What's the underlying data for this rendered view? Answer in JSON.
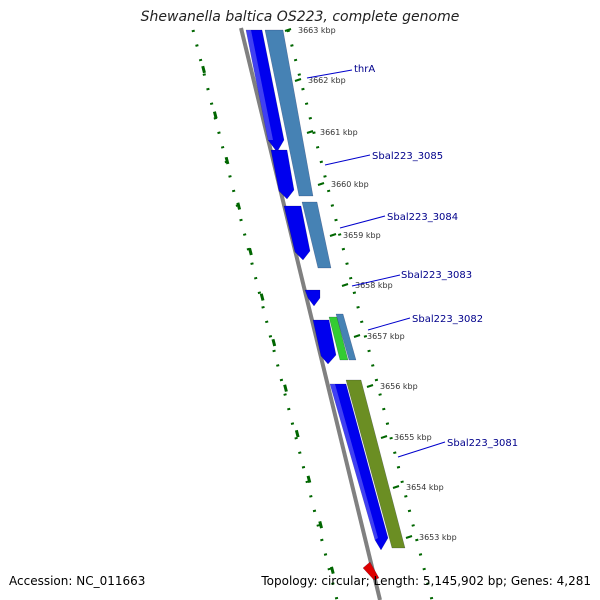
{
  "title": "Shewanella baltica OS223, complete genome",
  "footer": {
    "accession": "Accession: NC_011663",
    "summary": "Topology: circular; Length: 5,145,902 bp; Genes: 4,281"
  },
  "colors": {
    "cds_forward": "#0000ee",
    "gene_steelblue": "#4682b4",
    "gene_green": "#33cc33",
    "gene_olive": "#6b8e23",
    "gene_red": "#dd0000",
    "backbone": "#808080",
    "tick_green": "#006600",
    "label_blue": "#00008b"
  },
  "map": {
    "ticks": [
      {
        "label": "3663 kbp",
        "kbp": 3663
      },
      {
        "label": "3662 kbp",
        "kbp": 3662
      },
      {
        "label": "3661 kbp",
        "kbp": 3661
      },
      {
        "label": "3660 kbp",
        "kbp": 3660
      },
      {
        "label": "3659 kbp",
        "kbp": 3659
      },
      {
        "label": "3658 kbp",
        "kbp": 3658
      },
      {
        "label": "3657 kbp",
        "kbp": 3657
      },
      {
        "label": "3656 kbp",
        "kbp": 3656
      },
      {
        "label": "3655 kbp",
        "kbp": 3655
      },
      {
        "label": "3654 kbp",
        "kbp": 3654
      },
      {
        "label": "3653 kbp",
        "kbp": 3653
      }
    ],
    "gene_labels": [
      "thrA",
      "Sbal223_3085",
      "Sbal223_3084",
      "Sbal223_3083",
      "Sbal223_3082",
      "Sbal223_3081"
    ],
    "features": [
      {
        "name": "cds-1",
        "type": "CDS",
        "color": "cds_forward"
      },
      {
        "name": "cds-2",
        "type": "CDS",
        "color": "cds_forward"
      },
      {
        "name": "cds-3",
        "type": "CDS",
        "color": "cds_forward"
      },
      {
        "name": "cds-4",
        "type": "CDS",
        "color": "cds_forward"
      },
      {
        "name": "cds-5",
        "type": "CDS",
        "color": "cds_forward"
      },
      {
        "name": "cds-6",
        "type": "CDS",
        "color": "cds_forward"
      },
      {
        "name": "gene-thrA",
        "type": "gene",
        "color": "gene_steelblue"
      },
      {
        "name": "gene-3084",
        "type": "gene",
        "color": "gene_steelblue"
      },
      {
        "name": "gene-3082a",
        "type": "gene",
        "color": "gene_green"
      },
      {
        "name": "gene-3082b",
        "type": "gene",
        "color": "gene_steelblue"
      },
      {
        "name": "gene-3081",
        "type": "gene",
        "color": "gene_olive"
      },
      {
        "name": "feature-red",
        "type": "other",
        "color": "gene_red"
      }
    ]
  }
}
